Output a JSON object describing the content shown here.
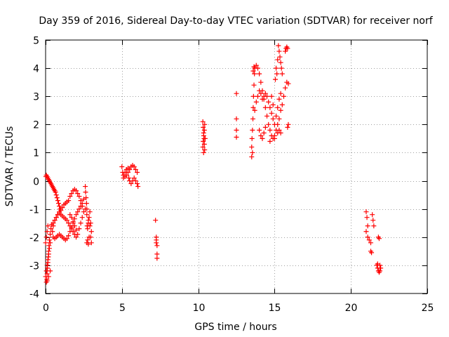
{
  "chart_data": {
    "type": "scatter",
    "title": "Day 359 of 2016, Sidereal Day-to-day VTEC variation (SDTVAR) for receiver norf",
    "xlabel": "GPS time / hours",
    "ylabel": "SDTVAR / TECUs",
    "xlim": [
      0,
      25
    ],
    "ylim": [
      -4,
      5
    ],
    "xticks": [
      0,
      5,
      10,
      15,
      20,
      25
    ],
    "yticks": [
      -4,
      -3,
      -2,
      -1,
      0,
      1,
      2,
      3,
      4,
      5
    ],
    "grid": true,
    "marker": "+",
    "series": [
      {
        "name": "SDTVAR",
        "color": "#ff0000",
        "points": [
          [
            0.05,
            -3.6
          ],
          [
            0.08,
            -3.5
          ],
          [
            0.1,
            -3.3
          ],
          [
            0.12,
            -3.1
          ],
          [
            0.15,
            -2.9
          ],
          [
            0.18,
            -2.7
          ],
          [
            0.2,
            -2.5
          ],
          [
            0.22,
            -2.3
          ],
          [
            0.25,
            -2.1
          ],
          [
            0.3,
            -1.9
          ],
          [
            0.35,
            -1.7
          ],
          [
            0.4,
            -1.55
          ],
          [
            0.5,
            -1.5
          ],
          [
            0.6,
            -1.4
          ],
          [
            0.7,
            -1.3
          ],
          [
            0.8,
            -1.2
          ],
          [
            0.9,
            -1.1
          ],
          [
            1.0,
            -1.05
          ],
          [
            1.1,
            -0.95
          ],
          [
            1.2,
            -0.85
          ],
          [
            1.3,
            -0.8
          ],
          [
            1.4,
            -0.75
          ],
          [
            1.5,
            -0.7
          ],
          [
            1.6,
            -0.55
          ],
          [
            1.7,
            -0.45
          ],
          [
            1.8,
            -0.35
          ],
          [
            1.9,
            -0.3
          ],
          [
            2.0,
            -0.35
          ],
          [
            2.1,
            -0.45
          ],
          [
            2.2,
            -0.55
          ],
          [
            2.3,
            -0.7
          ],
          [
            2.4,
            -0.9
          ],
          [
            2.5,
            -1.1
          ],
          [
            2.4,
            -1.3
          ],
          [
            2.3,
            -1.5
          ],
          [
            2.2,
            -1.7
          ],
          [
            2.1,
            -1.9
          ],
          [
            2.0,
            -2.0
          ],
          [
            1.9,
            -1.9
          ],
          [
            1.8,
            -1.8
          ],
          [
            1.7,
            -1.7
          ],
          [
            1.6,
            -1.6
          ],
          [
            1.5,
            -1.5
          ],
          [
            1.4,
            -1.4
          ],
          [
            1.3,
            -1.35
          ],
          [
            1.2,
            -1.3
          ],
          [
            1.1,
            -1.25
          ],
          [
            1.0,
            -1.2
          ],
          [
            0.9,
            -1.15
          ],
          [
            0.8,
            -1.2
          ],
          [
            0.7,
            -1.3
          ],
          [
            0.6,
            -1.4
          ],
          [
            0.5,
            -1.6
          ],
          [
            0.45,
            -1.8
          ],
          [
            0.5,
            -2.0
          ],
          [
            0.6,
            -2.05
          ],
          [
            0.7,
            -2.0
          ],
          [
            0.8,
            -1.95
          ],
          [
            0.9,
            -1.9
          ],
          [
            1.0,
            -1.95
          ],
          [
            1.1,
            -2.0
          ],
          [
            1.2,
            -2.05
          ],
          [
            1.3,
            -2.1
          ],
          [
            1.4,
            -2.05
          ],
          [
            1.5,
            -1.95
          ],
          [
            1.6,
            -1.8
          ],
          [
            1.7,
            -1.65
          ],
          [
            1.8,
            -1.5
          ],
          [
            1.9,
            -1.35
          ],
          [
            2.0,
            -1.2
          ],
          [
            2.1,
            -1.1
          ],
          [
            2.2,
            -1.0
          ],
          [
            2.3,
            -0.9
          ],
          [
            2.4,
            -0.8
          ],
          [
            2.5,
            -0.65
          ],
          [
            1.6,
            -1.2
          ],
          [
            1.7,
            -1.3
          ],
          [
            1.8,
            -1.45
          ],
          [
            1.9,
            -1.6
          ],
          [
            2.0,
            -1.75
          ],
          [
            0.02,
            0.15
          ],
          [
            0.05,
            0.2
          ],
          [
            0.1,
            0.15
          ],
          [
            0.15,
            0.1
          ],
          [
            0.2,
            0.05
          ],
          [
            0.25,
            0.0
          ],
          [
            0.3,
            -0.05
          ],
          [
            0.35,
            -0.1
          ],
          [
            0.4,
            -0.15
          ],
          [
            0.45,
            -0.2
          ],
          [
            0.5,
            -0.25
          ],
          [
            0.55,
            -0.3
          ],
          [
            0.6,
            -0.35
          ],
          [
            0.65,
            -0.4
          ],
          [
            0.7,
            -0.5
          ],
          [
            0.75,
            -0.6
          ],
          [
            0.8,
            -0.7
          ],
          [
            0.85,
            -0.8
          ],
          [
            0.9,
            -0.9
          ],
          [
            0.95,
            -1.0
          ],
          [
            0.3,
            -2.2
          ],
          [
            0.25,
            -2.4
          ],
          [
            0.2,
            -2.6
          ],
          [
            0.15,
            -2.8
          ],
          [
            0.1,
            -3.0
          ],
          [
            0.05,
            -3.2
          ],
          [
            0.0,
            -3.4
          ],
          [
            0.1,
            -3.55
          ],
          [
            0.2,
            -3.4
          ],
          [
            0.3,
            -3.2
          ],
          [
            0.0,
            -2.2
          ],
          [
            0.05,
            -2.0
          ],
          [
            0.1,
            -1.8
          ],
          [
            0.15,
            -1.6
          ],
          [
            2.6,
            -1.0
          ],
          [
            2.7,
            -1.2
          ],
          [
            2.8,
            -1.4
          ],
          [
            2.9,
            -1.6
          ],
          [
            3.0,
            -1.8
          ],
          [
            2.85,
            -2.0
          ],
          [
            2.75,
            -2.1
          ],
          [
            2.7,
            -2.2
          ],
          [
            2.8,
            -2.25
          ],
          [
            2.95,
            -2.0
          ],
          [
            2.6,
            -0.2
          ],
          [
            2.62,
            -0.4
          ],
          [
            2.65,
            -0.6
          ],
          [
            2.68,
            -0.8
          ],
          [
            2.7,
            -1.0
          ],
          [
            2.72,
            -1.6
          ],
          [
            2.75,
            -1.7
          ],
          [
            2.8,
            -1.5
          ],
          [
            2.85,
            -1.3
          ],
          [
            2.9,
            -1.1
          ],
          [
            2.95,
            -1.5
          ],
          [
            3.0,
            -2.2
          ],
          [
            5.0,
            0.5
          ],
          [
            5.05,
            0.3
          ],
          [
            5.1,
            0.1
          ],
          [
            5.2,
            0.15
          ],
          [
            5.3,
            0.2
          ],
          [
            5.4,
            0.3
          ],
          [
            5.5,
            0.4
          ],
          [
            5.6,
            0.5
          ],
          [
            5.7,
            0.55
          ],
          [
            5.8,
            0.5
          ],
          [
            5.9,
            0.4
          ],
          [
            6.0,
            0.3
          ],
          [
            5.5,
            0.0
          ],
          [
            5.6,
            -0.1
          ],
          [
            5.7,
            0.0
          ],
          [
            5.8,
            0.1
          ],
          [
            5.9,
            0.0
          ],
          [
            6.0,
            -0.1
          ],
          [
            6.05,
            -0.2
          ],
          [
            5.4,
            0.45
          ],
          [
            5.3,
            0.4
          ],
          [
            5.2,
            0.3
          ],
          [
            5.1,
            0.2
          ],
          [
            5.45,
            0.1
          ],
          [
            7.2,
            -1.4
          ],
          [
            7.25,
            -2.0
          ],
          [
            7.25,
            -2.2
          ],
          [
            7.3,
            -2.3
          ],
          [
            7.3,
            -2.6
          ],
          [
            7.3,
            -2.75
          ],
          [
            7.25,
            -2.1
          ],
          [
            10.3,
            2.1
          ],
          [
            10.32,
            1.9
          ],
          [
            10.35,
            1.7
          ],
          [
            10.38,
            1.5
          ],
          [
            10.4,
            1.3
          ],
          [
            10.42,
            1.1
          ],
          [
            10.35,
            1.0
          ],
          [
            10.3,
            1.2
          ],
          [
            10.32,
            1.4
          ],
          [
            10.36,
            1.6
          ],
          [
            10.4,
            1.8
          ],
          [
            10.42,
            2.0
          ],
          [
            10.45,
            1.5
          ],
          [
            12.5,
            3.1
          ],
          [
            12.5,
            2.2
          ],
          [
            12.5,
            1.8
          ],
          [
            12.5,
            1.55
          ],
          [
            13.5,
            0.85
          ],
          [
            13.5,
            1.2
          ],
          [
            13.52,
            1.5
          ],
          [
            13.55,
            1.8
          ],
          [
            13.58,
            2.2
          ],
          [
            13.6,
            2.6
          ],
          [
            13.62,
            3.0
          ],
          [
            13.65,
            3.4
          ],
          [
            13.68,
            3.8
          ],
          [
            13.7,
            4.0
          ],
          [
            13.8,
            4.1
          ],
          [
            13.9,
            4.0
          ],
          [
            14.0,
            3.8
          ],
          [
            14.1,
            3.5
          ],
          [
            14.2,
            3.2
          ],
          [
            14.3,
            2.9
          ],
          [
            14.4,
            2.6
          ],
          [
            14.5,
            2.3
          ],
          [
            14.6,
            2.0
          ],
          [
            14.7,
            1.8
          ],
          [
            14.8,
            1.6
          ],
          [
            14.9,
            1.5
          ],
          [
            15.0,
            1.6
          ],
          [
            15.1,
            1.8
          ],
          [
            15.2,
            2.0
          ],
          [
            15.3,
            2.2
          ],
          [
            15.4,
            2.5
          ],
          [
            15.5,
            2.7
          ],
          [
            15.6,
            3.0
          ],
          [
            15.7,
            3.3
          ],
          [
            15.8,
            3.5
          ],
          [
            15.9,
            3.45
          ],
          [
            13.7,
            2.5
          ],
          [
            13.8,
            2.8
          ],
          [
            13.9,
            3.0
          ],
          [
            14.0,
            3.2
          ],
          [
            14.1,
            3.1
          ],
          [
            14.2,
            2.9
          ],
          [
            14.3,
            3.0
          ],
          [
            14.4,
            3.1
          ],
          [
            14.5,
            3.0
          ],
          [
            14.6,
            2.8
          ],
          [
            14.7,
            2.6
          ],
          [
            14.8,
            2.4
          ],
          [
            14.9,
            2.2
          ],
          [
            15.0,
            2.0
          ],
          [
            15.1,
            2.3
          ],
          [
            15.2,
            2.6
          ],
          [
            15.3,
            2.9
          ],
          [
            15.4,
            3.1
          ],
          [
            15.2,
            4.3
          ],
          [
            15.25,
            4.8
          ],
          [
            15.3,
            4.6
          ],
          [
            15.35,
            4.4
          ],
          [
            15.4,
            4.2
          ],
          [
            15.45,
            4.0
          ],
          [
            15.5,
            3.8
          ],
          [
            15.15,
            3.8
          ],
          [
            15.1,
            4.0
          ],
          [
            15.05,
            3.6
          ],
          [
            14.0,
            1.8
          ],
          [
            14.1,
            1.6
          ],
          [
            14.2,
            1.5
          ],
          [
            14.3,
            1.7
          ],
          [
            14.4,
            1.9
          ],
          [
            13.6,
            3.9
          ],
          [
            13.65,
            4.05
          ],
          [
            14.9,
            2.7
          ],
          [
            14.8,
            3.0
          ],
          [
            15.7,
            4.6
          ],
          [
            15.75,
            4.7
          ],
          [
            15.8,
            4.75
          ],
          [
            15.85,
            4.7
          ],
          [
            15.85,
            1.9
          ],
          [
            15.9,
            2.0
          ],
          [
            15.0,
            1.5
          ],
          [
            15.2,
            1.7
          ],
          [
            15.3,
            1.8
          ],
          [
            15.4,
            1.7
          ],
          [
            14.7,
            1.4
          ],
          [
            13.55,
            1.0
          ],
          [
            21.0,
            -1.1
          ],
          [
            21.05,
            -1.3
          ],
          [
            21.1,
            -1.6
          ],
          [
            21.0,
            -1.8
          ],
          [
            21.1,
            -2.0
          ],
          [
            21.2,
            -2.1
          ],
          [
            21.3,
            -2.5
          ],
          [
            21.35,
            -2.55
          ],
          [
            21.4,
            -1.2
          ],
          [
            21.45,
            -1.4
          ],
          [
            21.5,
            -1.6
          ],
          [
            21.3,
            -2.2
          ],
          [
            21.8,
            -2.0
          ],
          [
            21.85,
            -2.05
          ],
          [
            21.7,
            -3.0
          ],
          [
            21.75,
            -3.1
          ],
          [
            21.8,
            -3.2
          ],
          [
            21.85,
            -3.25
          ],
          [
            21.9,
            -3.0
          ],
          [
            21.95,
            -3.1
          ],
          [
            21.75,
            -2.95
          ],
          [
            21.9,
            -3.2
          ]
        ]
      }
    ]
  }
}
